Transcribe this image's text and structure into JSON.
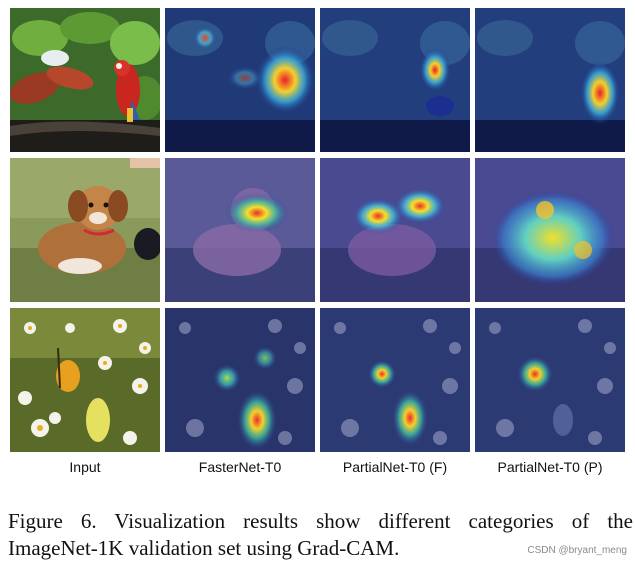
{
  "figure": {
    "columns": [
      {
        "label": "Input"
      },
      {
        "label": "FasterNet-T0"
      },
      {
        "label": "PartialNet-T0 (F)"
      },
      {
        "label": "PartialNet-T0 (P)"
      }
    ],
    "rows": [
      {
        "subject": "parrot"
      },
      {
        "subject": "dog"
      },
      {
        "subject": "butterfly"
      }
    ],
    "caption_line1": "Figure 6.  Visualization results show different categories of the",
    "caption_line2": "ImageNet-1K validation set using Grad-CAM.",
    "watermark": "CSDN @bryant_meng"
  }
}
